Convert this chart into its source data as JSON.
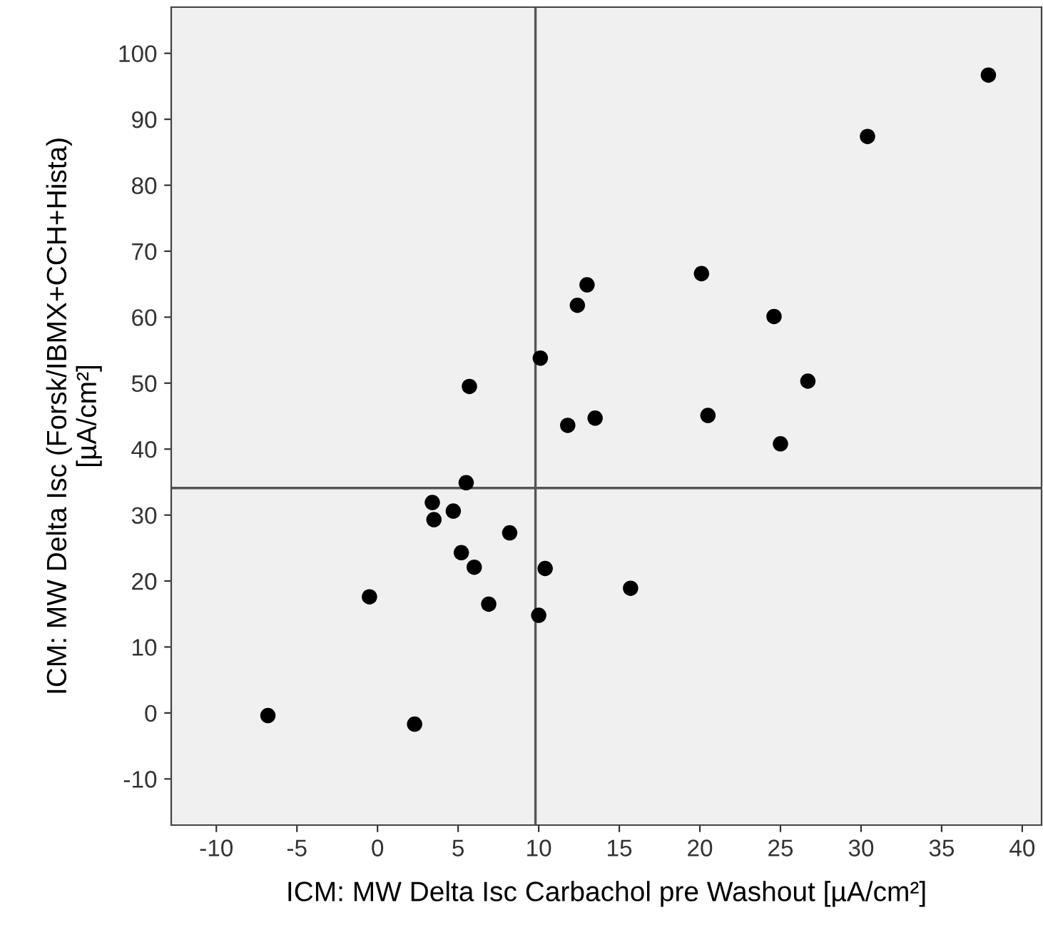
{
  "chart_data": {
    "type": "scatter",
    "xlabel": "ICM: MW Delta Isc Carbachol pre Washout [µA/cm²]",
    "ylabel": "ICM: MW Delta Isc (Forsk/IBMX+CCH+Hista)\n[µA/cm²]",
    "x": [
      37.9,
      30.4,
      20.1,
      13.0,
      12.4,
      24.6,
      10.1,
      5.7,
      26.7,
      20.5,
      13.5,
      11.8,
      25.0,
      5.5,
      3.4,
      4.7,
      3.5,
      8.2,
      5.2,
      6.0,
      10.4,
      15.7,
      -0.5,
      6.9,
      10.0,
      -6.8,
      2.3
    ],
    "values": [
      96.7,
      87.4,
      66.6,
      64.9,
      61.8,
      60.1,
      53.8,
      49.5,
      50.3,
      45.1,
      44.7,
      43.6,
      40.8,
      34.9,
      31.9,
      30.6,
      29.3,
      27.3,
      24.3,
      22.1,
      21.9,
      18.9,
      17.6,
      16.5,
      14.8,
      -0.4,
      -1.7
    ],
    "color": "#000000",
    "marker": "circle",
    "xlim": [
      -12.8,
      41.2
    ],
    "ylim": [
      -17,
      107
    ],
    "xticks": [
      -10,
      -5,
      0,
      5,
      10,
      15,
      20,
      25,
      30,
      35,
      40
    ],
    "yticks": [
      -10,
      0,
      10,
      20,
      30,
      40,
      50,
      60,
      70,
      80,
      90,
      100
    ],
    "ref_lines": [
      {
        "axis": "x",
        "value": 9.8,
        "color": "#555555"
      },
      {
        "axis": "y",
        "value": 34.1,
        "color": "#555555"
      }
    ],
    "grid": false,
    "legend": false
  }
}
